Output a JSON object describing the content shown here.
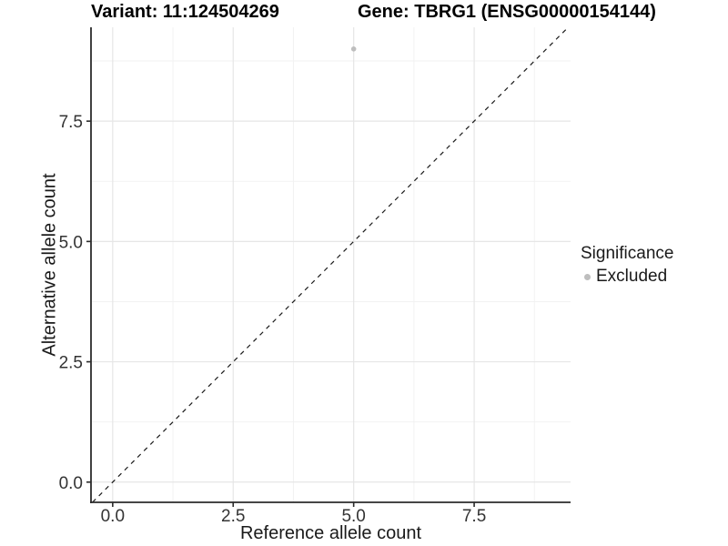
{
  "titles": {
    "variant": "Variant: 11:124504269",
    "gene": "Gene: TBRG1 (ENSG00000154144)"
  },
  "chart_data": {
    "type": "scatter",
    "title_variant": "Variant: 11:124504269",
    "title_gene": "Gene: TBRG1 (ENSG00000154144)",
    "xlabel": "Reference allele count",
    "ylabel": "Alternative allele count",
    "xlim": [
      -0.45,
      9.5
    ],
    "ylim": [
      -0.42,
      9.45
    ],
    "x_ticks": [
      {
        "value": 0.0,
        "label": "0.0"
      },
      {
        "value": 2.5,
        "label": "2.5"
      },
      {
        "value": 5.0,
        "label": "5.0"
      },
      {
        "value": 7.5,
        "label": "7.5"
      }
    ],
    "y_ticks": [
      {
        "value": 0.0,
        "label": "0.0"
      },
      {
        "value": 2.5,
        "label": "2.5"
      },
      {
        "value": 5.0,
        "label": "5.0"
      },
      {
        "value": 7.5,
        "label": "7.5"
      }
    ],
    "x_minor_ticks": [
      1.25,
      3.75,
      6.25,
      8.75
    ],
    "y_minor_ticks": [
      1.25,
      3.75,
      6.25,
      8.75
    ],
    "grid": true,
    "points": [
      {
        "x": 5,
        "y": 9,
        "significance": "Excluded"
      }
    ],
    "reference_line": {
      "type": "identity",
      "slope": 1,
      "intercept": 0,
      "style": "dashed"
    },
    "legend": {
      "position": "right",
      "title": "Significance",
      "items": [
        {
          "label": "Excluded",
          "color": "#bebebe",
          "marker": "circle"
        }
      ]
    },
    "colors": {
      "point": "#bebebe",
      "major_grid": "#e6e6e6",
      "minor_grid": "#f2f2f2",
      "axis_line": "#2b2b2b",
      "tick_mark": "#2b2b2b",
      "tick_label": "#333333",
      "reference_line": "#1a1a1a",
      "background": "#ffffff"
    }
  }
}
